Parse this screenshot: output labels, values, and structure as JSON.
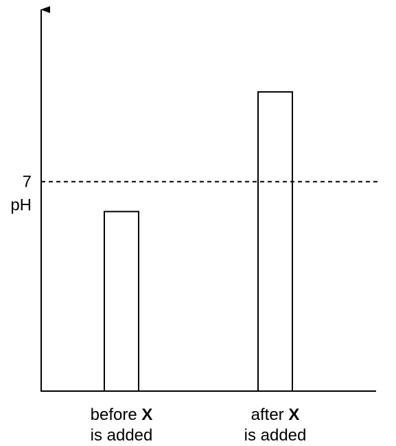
{
  "chart_data": {
    "type": "bar",
    "categories": [
      {
        "line1_prefix": "before ",
        "line1_bold": "X",
        "line2": "is added"
      },
      {
        "line1_prefix": "after ",
        "line1_bold": "X",
        "line2": "is added"
      }
    ],
    "values": [
      6,
      10
    ],
    "reference_line": {
      "value": 7,
      "label": "7",
      "style": "dashed"
    },
    "ylabel": "pH",
    "ylim": [
      0,
      12.75
    ],
    "grid": false,
    "legend": "none",
    "colors": {
      "bar_fill": "#ffffff",
      "stroke": "#000000"
    }
  }
}
